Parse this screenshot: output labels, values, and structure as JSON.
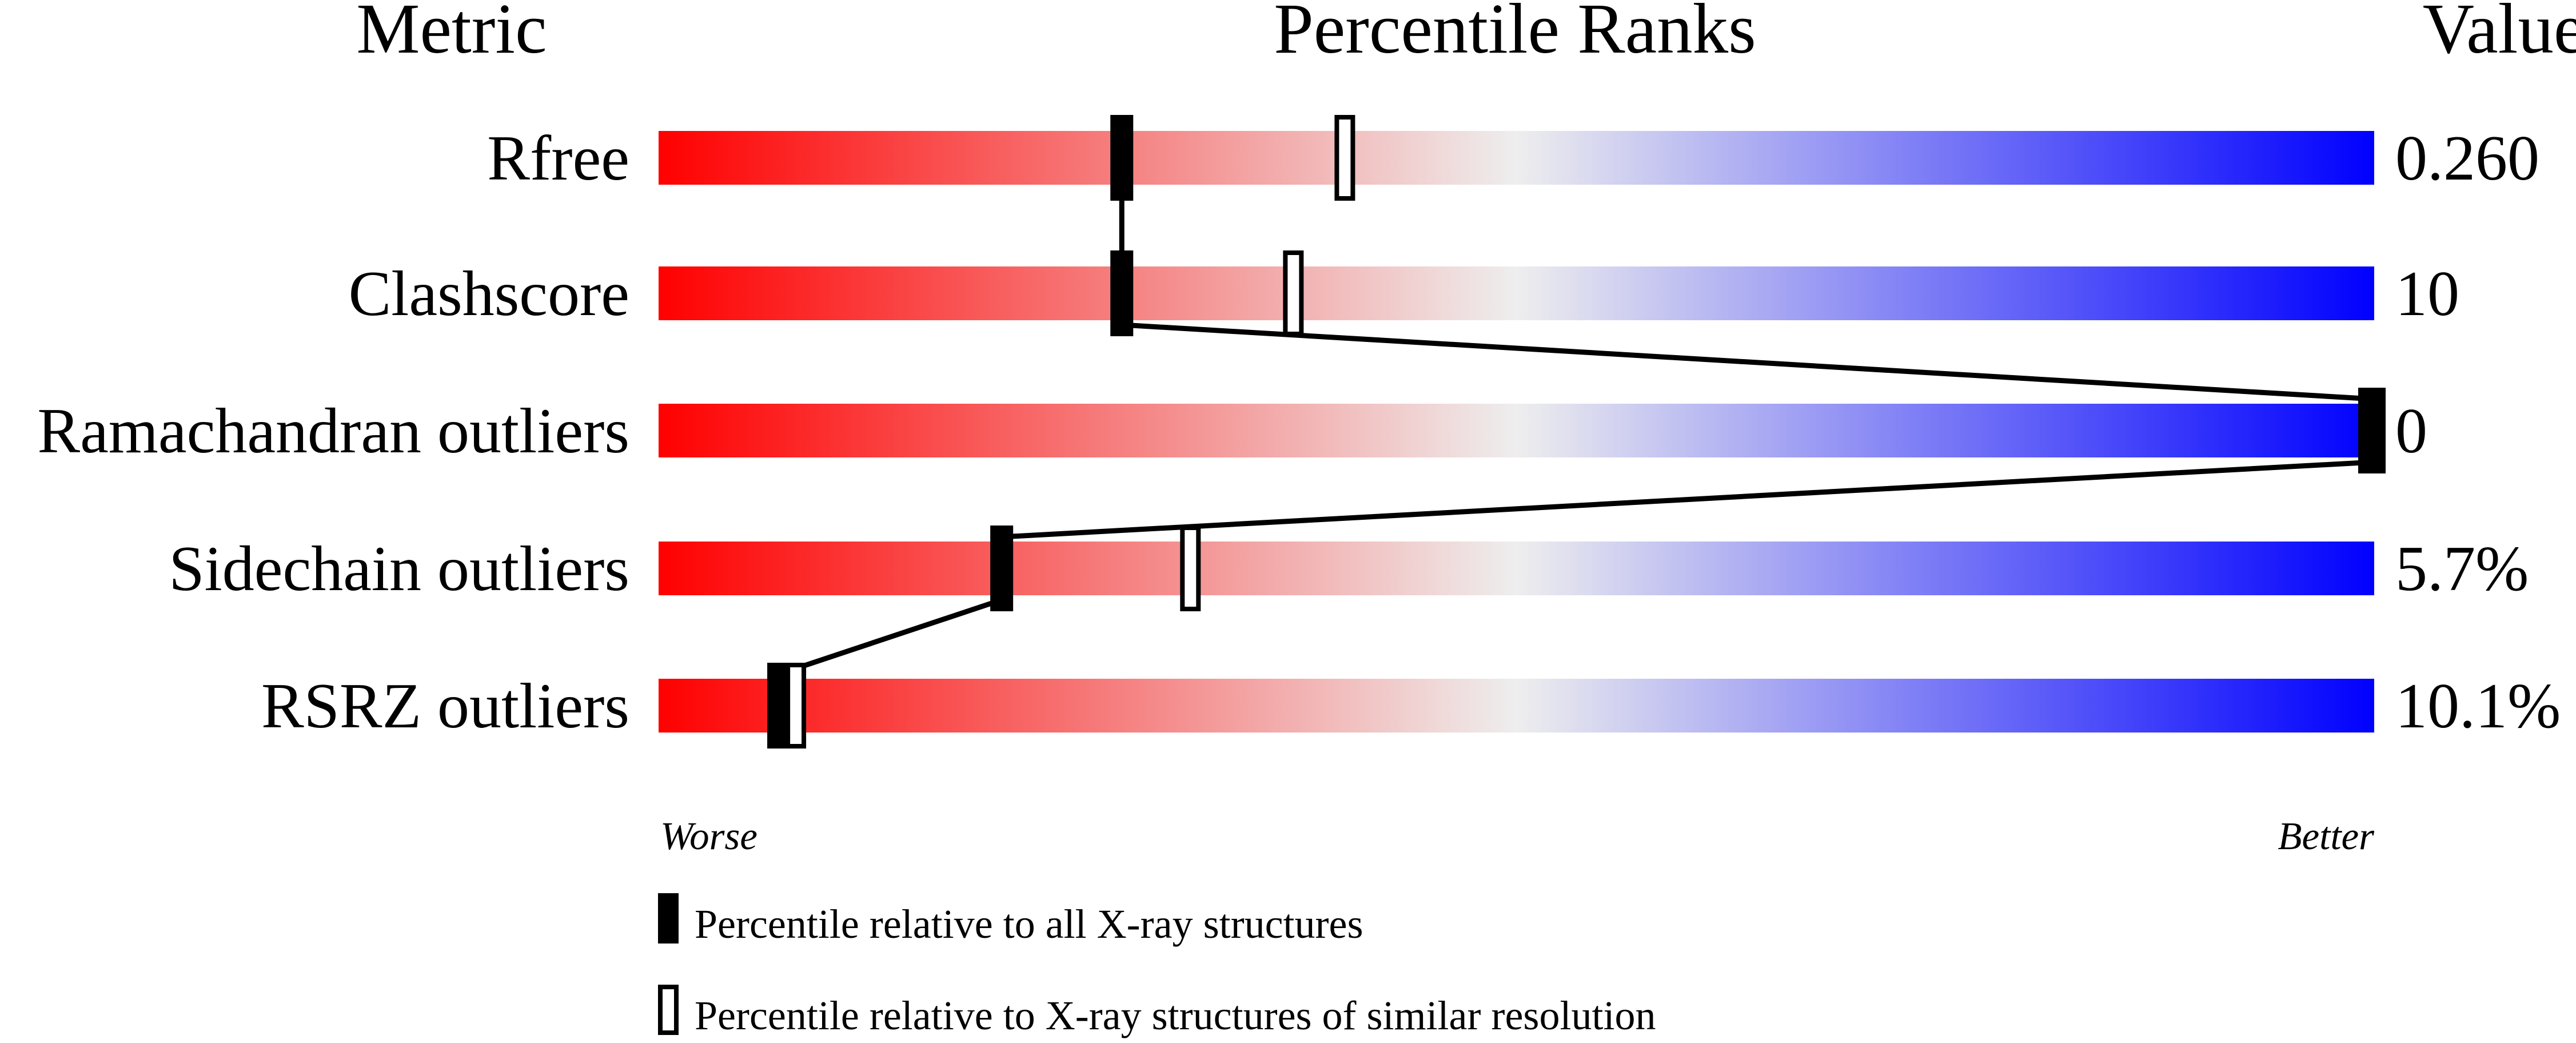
{
  "chart_data": {
    "type": "percentile-slider",
    "headers": {
      "metric": "Metric",
      "ranks": "Percentile Ranks",
      "value": "Value"
    },
    "xlim": [
      0,
      100
    ],
    "axis_labels": {
      "left": "Worse",
      "right": "Better"
    },
    "colors": {
      "worse": "#ff0000",
      "middle": "#eeeeee",
      "better": "#0000ff"
    },
    "rows": [
      {
        "metric": "Rfree",
        "value": "0.260",
        "percentile_all": 27,
        "percentile_similar": 40
      },
      {
        "metric": "Clashscore",
        "value": "10",
        "percentile_all": 27,
        "percentile_similar": 37
      },
      {
        "metric": "Ramachandran outliers",
        "value": "0",
        "percentile_all": 100,
        "percentile_similar": 100
      },
      {
        "metric": "Sidechain outliers",
        "value": "5.7%",
        "percentile_all": 20,
        "percentile_similar": 31
      },
      {
        "metric": "RSRZ outliers",
        "value": "10.1%",
        "percentile_all": 7,
        "percentile_similar": 8
      }
    ],
    "legend": [
      {
        "marker": "filled",
        "label": "Percentile relative to all X-ray structures"
      },
      {
        "marker": "hollow",
        "label": "Percentile relative to X-ray structures of similar resolution"
      }
    ]
  }
}
